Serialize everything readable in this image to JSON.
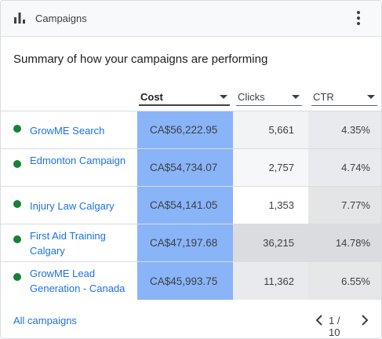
{
  "header": {
    "title": "Campaigns",
    "icon": "bar-chart-icon",
    "menu_icon": "more-vert-icon"
  },
  "summary": "Summary of how your campaigns are performing",
  "columns": [
    {
      "label": "Cost",
      "sorted": true
    },
    {
      "label": "Clicks",
      "sorted": false
    },
    {
      "label": "CTR",
      "sorted": false
    }
  ],
  "rows": [
    {
      "name": "GrowME Search",
      "cost": "CA$56,222.95",
      "clicks": "5,661",
      "ctr": "4.35%",
      "status": "enabled",
      "clicks_shade": "#f1f3f4",
      "ctr_shade": "#e8eaed"
    },
    {
      "name": "Edmonton Campaign",
      "cost": "CA$54,734.07",
      "clicks": "2,757",
      "ctr": "4.74%",
      "status": "enabled",
      "clicks_shade": "#f6f7f8",
      "ctr_shade": "#e8eaed"
    },
    {
      "name": "Injury Law Calgary",
      "cost": "CA$54,141.05",
      "clicks": "1,353",
      "ctr": "7.77%",
      "status": "enabled",
      "clicks_shade": "#ffffff",
      "ctr_shade": "#e4e5e7"
    },
    {
      "name": "First Aid Training Calgary",
      "cost": "CA$47,197.68",
      "clicks": "36,215",
      "ctr": "14.78%",
      "status": "enabled",
      "clicks_shade": "#dadce0",
      "ctr_shade": "#dadce0"
    },
    {
      "name": "GrowME Lead Generation - Canada",
      "cost": "CA$45,993.75",
      "clicks": "11,362",
      "ctr": "6.55%",
      "status": "enabled",
      "clicks_shade": "#e8eaed",
      "ctr_shade": "#e6e7e9"
    }
  ],
  "footer": {
    "link": "All campaigns",
    "pagination": "1 / 10"
  },
  "colors": {
    "accent": "#1a73e8",
    "cost_highlight": "#8ab4f8",
    "status_green": "#188038"
  }
}
